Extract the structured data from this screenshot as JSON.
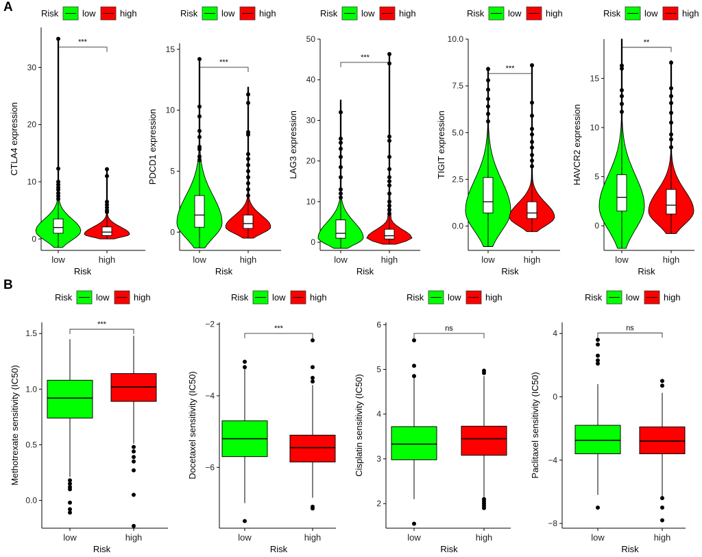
{
  "panel_labels": {
    "a": "A",
    "b": "B"
  },
  "legend": {
    "title": "Risk",
    "low": "low",
    "high": "high"
  },
  "colors": {
    "low": "#00ff00",
    "high": "#ff0000",
    "box_a": "#ffffff",
    "ink": "#000000"
  },
  "chart_data": [
    {
      "type": "violin",
      "panel": "A",
      "title": "",
      "xlabel": "Risk",
      "ylabel": "CTLA4 expression",
      "categories": [
        "low",
        "high"
      ],
      "ylim": [
        -2,
        37
      ],
      "yticks": [
        0,
        10,
        20,
        30
      ],
      "significance": "***",
      "series": [
        {
          "name": "low",
          "q1": 1.0,
          "median": 2.0,
          "q3": 3.5,
          "whisker_low": -1.5,
          "whisker_high": 35,
          "outliers": [
            35,
            12.3,
            10,
            9.5,
            9,
            8.6,
            8,
            7.5,
            7
          ]
        },
        {
          "name": "high",
          "q1": 0.6,
          "median": 1.2,
          "q3": 2.1,
          "whisker_low": 0,
          "whisker_high": 12.2,
          "outliers": [
            12.2,
            11,
            6.5,
            6,
            5.5,
            5,
            4.7
          ]
        }
      ]
    },
    {
      "type": "violin",
      "panel": "A",
      "title": "",
      "xlabel": "Risk",
      "ylabel": "PDCD1 expression",
      "categories": [
        "low",
        "high"
      ],
      "ylim": [
        -1.5,
        15.5
      ],
      "yticks": [
        0,
        5,
        10,
        15
      ],
      "significance": "***",
      "series": [
        {
          "name": "low",
          "q1": 0.4,
          "median": 1.4,
          "q3": 3.0,
          "whisker_low": -1.3,
          "whisker_high": 14.2,
          "outliers": [
            14.2,
            10.3,
            9.5,
            8.3,
            7.8,
            7,
            6.8,
            6.2,
            5.9
          ]
        },
        {
          "name": "high",
          "q1": 0.3,
          "median": 0.7,
          "q3": 1.4,
          "whisker_low": -0.5,
          "whisker_high": 11.9,
          "outliers": [
            11.3,
            10.6,
            8.2,
            8,
            6.4,
            6,
            5.5,
            5,
            4.5,
            4,
            3.5,
            3
          ]
        }
      ]
    },
    {
      "type": "violin",
      "panel": "A",
      "title": "",
      "xlabel": "Risk",
      "ylabel": "LAG3 expression",
      "categories": [
        "low",
        "high"
      ],
      "ylim": [
        -2,
        50
      ],
      "yticks": [
        0,
        10,
        20,
        30,
        40,
        50
      ],
      "significance": "***",
      "series": [
        {
          "name": "low",
          "q1": 1.0,
          "median": 2.2,
          "q3": 5.5,
          "whisker_low": -1.5,
          "whisker_high": 35,
          "outliers": [
            32,
            25.5,
            24.5,
            23,
            21,
            18.5,
            16,
            13,
            12,
            11
          ]
        },
        {
          "name": "high",
          "q1": 0.8,
          "median": 1.6,
          "q3": 3.2,
          "whisker_low": -0.5,
          "whisker_high": 46.3,
          "outliers": [
            46.3,
            44,
            26,
            25,
            21,
            18,
            16,
            15,
            14,
            12,
            10,
            9,
            8,
            7
          ]
        }
      ]
    },
    {
      "type": "violin",
      "panel": "A",
      "title": "",
      "xlabel": "Risk",
      "ylabel": "TIGIT expression",
      "categories": [
        "low",
        "high"
      ],
      "ylim": [
        -1.3,
        10
      ],
      "yticks": [
        0.0,
        2.5,
        5.0,
        7.5,
        10.0
      ],
      "ytick_labels": [
        "0.0",
        "2.5",
        "5.0",
        "7.5",
        "10.0"
      ],
      "significance": "***",
      "series": [
        {
          "name": "low",
          "q1": 0.7,
          "median": 1.3,
          "q3": 2.6,
          "whisker_low": -1.1,
          "whisker_high": 8.5,
          "outliers": [
            8.4,
            7.8,
            7.3,
            6.8,
            6.4,
            6,
            5.6
          ]
        },
        {
          "name": "high",
          "q1": 0.4,
          "median": 0.7,
          "q3": 1.3,
          "whisker_low": -0.3,
          "whisker_high": 8.6,
          "outliers": [
            8.6,
            6.6,
            5.9,
            5.2,
            4.9,
            4.5,
            4.2,
            3.8,
            3.5,
            3.2
          ]
        }
      ]
    },
    {
      "type": "violin",
      "panel": "A",
      "title": "",
      "xlabel": "Risk",
      "ylabel": "HAVCR2 expression",
      "categories": [
        "low",
        "high"
      ],
      "ylim": [
        -2.5,
        19
      ],
      "yticks": [
        0,
        5,
        10,
        15
      ],
      "significance": "**",
      "series": [
        {
          "name": "low",
          "q1": 1.5,
          "median": 2.9,
          "q3": 5.2,
          "whisker_low": -2.3,
          "whisker_high": 19,
          "outliers": [
            16.3,
            16,
            13.8,
            13.2,
            12.4,
            11.6
          ]
        },
        {
          "name": "high",
          "q1": 1.2,
          "median": 2.1,
          "q3": 3.7,
          "whisker_low": -0.8,
          "whisker_high": 16.8,
          "outliers": [
            16.6,
            14,
            13.2,
            12.5,
            11.5,
            10.5,
            9.3,
            8.8,
            8
          ]
        }
      ]
    },
    {
      "type": "box",
      "panel": "B",
      "title": "",
      "xlabel": "Risk",
      "ylabel": "Methotrexate sensitivity (IC50)",
      "categories": [
        "low",
        "high"
      ],
      "ylim": [
        -0.25,
        1.6
      ],
      "yticks": [
        0.0,
        0.5,
        1.0,
        1.5
      ],
      "ytick_labels": [
        "0.0",
        "0.5",
        "1.0",
        "1.5"
      ],
      "significance": "***",
      "series": [
        {
          "name": "low",
          "q1": 0.74,
          "median": 0.92,
          "q3": 1.08,
          "whisker_low": 0.21,
          "whisker_high": 1.45,
          "outliers": [
            0.18,
            0.15,
            0.12,
            0.1,
            -0.02,
            -0.08,
            -0.11
          ]
        },
        {
          "name": "high",
          "q1": 0.89,
          "median": 1.02,
          "q3": 1.14,
          "whisker_low": 0.51,
          "whisker_high": 1.48,
          "outliers": [
            0.48,
            0.44,
            0.39,
            0.35,
            0.27,
            0.05,
            -0.23
          ]
        }
      ]
    },
    {
      "type": "box",
      "panel": "B",
      "title": "",
      "xlabel": "Risk",
      "ylabel": "Docetaxel sensitivity (IC50)",
      "categories": [
        "low",
        "high"
      ],
      "ylim": [
        -7.7,
        -1.95
      ],
      "yticks": [
        -6,
        -4,
        -2
      ],
      "ytick_labels": [
        "-6",
        "-4",
        "-2"
      ],
      "significance": "***",
      "series": [
        {
          "name": "low",
          "q1": -5.7,
          "median": -5.2,
          "q3": -4.7,
          "whisker_low": -7.0,
          "whisker_high": -3.2,
          "outliers": [
            -3.05,
            -3.2,
            -7.5
          ]
        },
        {
          "name": "high",
          "q1": -5.85,
          "median": -5.45,
          "q3": -5.1,
          "whisker_low": -6.85,
          "whisker_high": -3.7,
          "outliers": [
            -2.45,
            -3.2,
            -3.5,
            -3.6,
            -7.1,
            -7.15
          ]
        }
      ]
    },
    {
      "type": "box",
      "panel": "B",
      "title": "",
      "xlabel": "Risk",
      "ylabel": "Cisplatin sensitivity (IC50)",
      "categories": [
        "low",
        "high"
      ],
      "ylim": [
        1.45,
        6.05
      ],
      "yticks": [
        2,
        3,
        4,
        5,
        6
      ],
      "significance": "ns",
      "series": [
        {
          "name": "low",
          "q1": 2.98,
          "median": 3.33,
          "q3": 3.72,
          "whisker_low": 2.1,
          "whisker_high": 4.82,
          "outliers": [
            5.65,
            5.08,
            4.85,
            1.55
          ]
        },
        {
          "name": "high",
          "q1": 3.08,
          "median": 3.45,
          "q3": 3.73,
          "whisker_low": 2.15,
          "whisker_high": 4.85,
          "outliers": [
            4.97,
            4.92,
            2.1,
            2.05,
            2.0,
            1.95,
            1.9
          ]
        }
      ]
    },
    {
      "type": "box",
      "panel": "B",
      "title": "",
      "xlabel": "Risk",
      "ylabel": "Paclitaxel sensitivity (IC50)",
      "categories": [
        "low",
        "high"
      ],
      "ylim": [
        -8.3,
        4.7
      ],
      "yticks": [
        -8,
        -4,
        0,
        4
      ],
      "ytick_labels": [
        "-8",
        "-4",
        "0",
        "4"
      ],
      "significance": "ns",
      "series": [
        {
          "name": "low",
          "q1": -3.6,
          "median": -2.75,
          "q3": -1.8,
          "whisker_low": -6.2,
          "whisker_high": 0.8,
          "outliers": [
            3.6,
            3.3,
            2.6,
            2.3,
            2.1,
            -7.0
          ]
        },
        {
          "name": "high",
          "q1": -3.6,
          "median": -2.8,
          "q3": -1.9,
          "whisker_low": -6.3,
          "whisker_high": 0.25,
          "outliers": [
            1.0,
            0.7,
            -6.4,
            -7.0,
            -7.8
          ]
        }
      ]
    }
  ]
}
